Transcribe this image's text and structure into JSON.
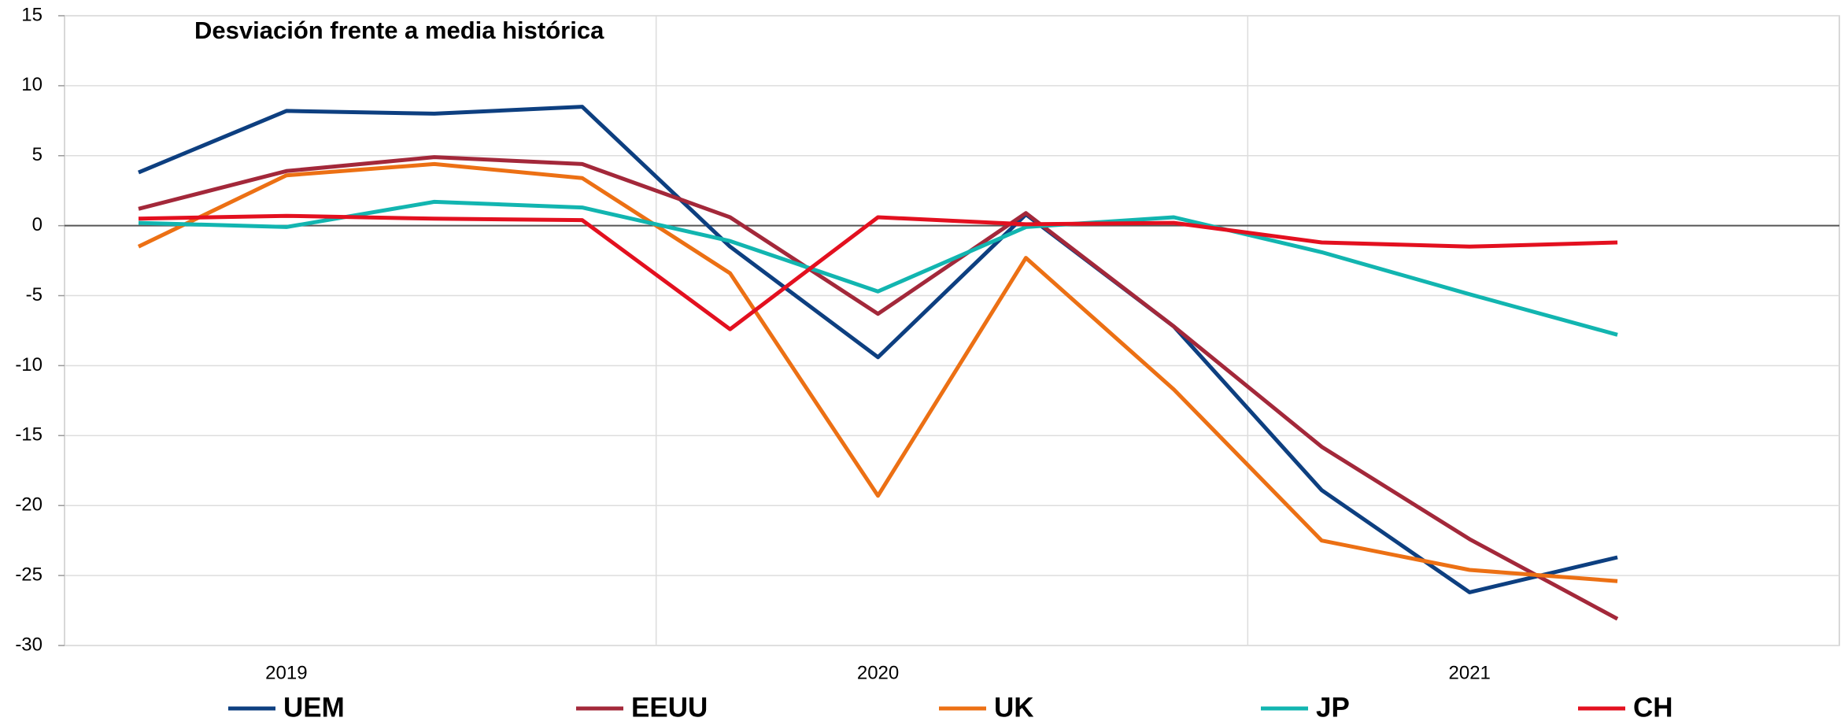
{
  "chart_data": {
    "type": "line",
    "title": "Desviación frente a media histórica",
    "categories": [
      null,
      "2019",
      null,
      null,
      null,
      "2020",
      null,
      null,
      null,
      "2021",
      null,
      null
    ],
    "series": [
      {
        "name": "UEM",
        "color": "#0d3f80",
        "values": [
          3.8,
          8.2,
          8.0,
          8.5,
          -1.5,
          -9.4,
          0.8,
          -7.2,
          -18.9,
          -26.2,
          -23.7,
          null
        ]
      },
      {
        "name": "EEUU",
        "color": "#a3283a",
        "values": [
          1.2,
          3.9,
          4.9,
          4.4,
          0.6,
          -6.3,
          0.9,
          -7.2,
          -15.8,
          -22.4,
          -28.1,
          null
        ]
      },
      {
        "name": "UK",
        "color": "#ec7014",
        "values": [
          -1.5,
          3.6,
          4.4,
          3.4,
          -3.4,
          -19.3,
          -2.3,
          -11.7,
          -22.5,
          -24.6,
          -25.4,
          null
        ]
      },
      {
        "name": "JP",
        "color": "#12b5b0",
        "values": [
          0.2,
          -0.1,
          1.7,
          1.3,
          -1.1,
          -4.7,
          -0.1,
          0.6,
          -1.9,
          -4.9,
          -7.8,
          null
        ]
      },
      {
        "name": "CH",
        "color": "#e3101f",
        "values": [
          0.5,
          0.7,
          0.5,
          0.4,
          -7.4,
          0.6,
          0.1,
          0.2,
          -1.2,
          -1.5,
          -1.2,
          null
        ]
      }
    ],
    "ylim": [
      -30,
      15
    ],
    "yticks": [
      -30,
      -25,
      -20,
      -15,
      -10,
      -5,
      0,
      5,
      10,
      15
    ],
    "grid": true
  }
}
